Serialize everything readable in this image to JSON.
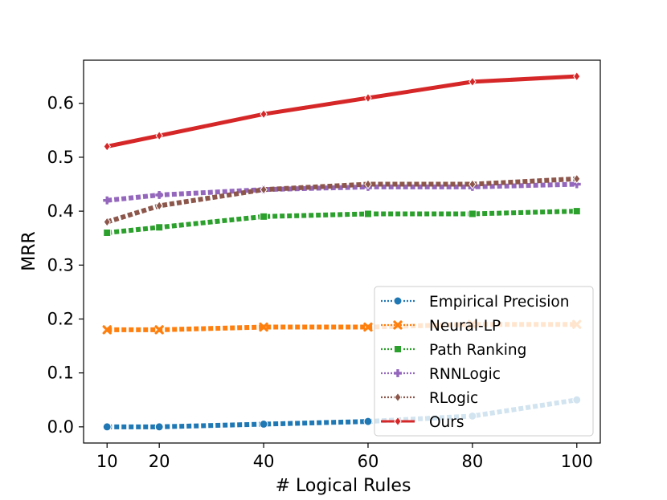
{
  "chart_data": {
    "type": "line",
    "title": "",
    "xlabel": "# Logical Rules",
    "ylabel": "MRR",
    "x": [
      10,
      20,
      40,
      60,
      80,
      100
    ],
    "xticks": [
      10,
      20,
      40,
      60,
      80,
      100
    ],
    "yticks": [
      0.0,
      0.1,
      0.2,
      0.3,
      0.4,
      0.5,
      0.6
    ],
    "ytick_labels": [
      "0.0",
      "0.1",
      "0.2",
      "0.3",
      "0.4",
      "0.5",
      "0.6"
    ],
    "xlim": [
      5.5,
      104.5
    ],
    "ylim": [
      -0.03,
      0.68
    ],
    "grid": false,
    "legend_position": "lower-right",
    "series": [
      {
        "name": "Empirical Precision",
        "values": [
          0.0,
          0.0,
          0.005,
          0.01,
          0.02,
          0.05
        ],
        "color": "#1f77b4",
        "style": "dotted",
        "marker": "circle"
      },
      {
        "name": "Neural-LP",
        "values": [
          0.18,
          0.18,
          0.185,
          0.185,
          0.19,
          0.19
        ],
        "color": "#ff7f0e",
        "style": "dotted",
        "marker": "x"
      },
      {
        "name": "Path Ranking",
        "values": [
          0.36,
          0.37,
          0.39,
          0.395,
          0.395,
          0.4
        ],
        "color": "#2ca02c",
        "style": "dotted",
        "marker": "square"
      },
      {
        "name": "RNNLogic",
        "values": [
          0.42,
          0.43,
          0.44,
          0.445,
          0.445,
          0.45
        ],
        "color": "#9467bd",
        "style": "dotted",
        "marker": "plus"
      },
      {
        "name": "RLogic",
        "values": [
          0.38,
          0.41,
          0.44,
          0.45,
          0.45,
          0.46
        ],
        "color": "#8c564b",
        "style": "dotted",
        "marker": "diamond"
      },
      {
        "name": "Ours",
        "values": [
          0.52,
          0.54,
          0.58,
          0.61,
          0.64,
          0.65
        ],
        "color": "#d62728",
        "style": "solid",
        "marker": "diamond"
      }
    ]
  }
}
